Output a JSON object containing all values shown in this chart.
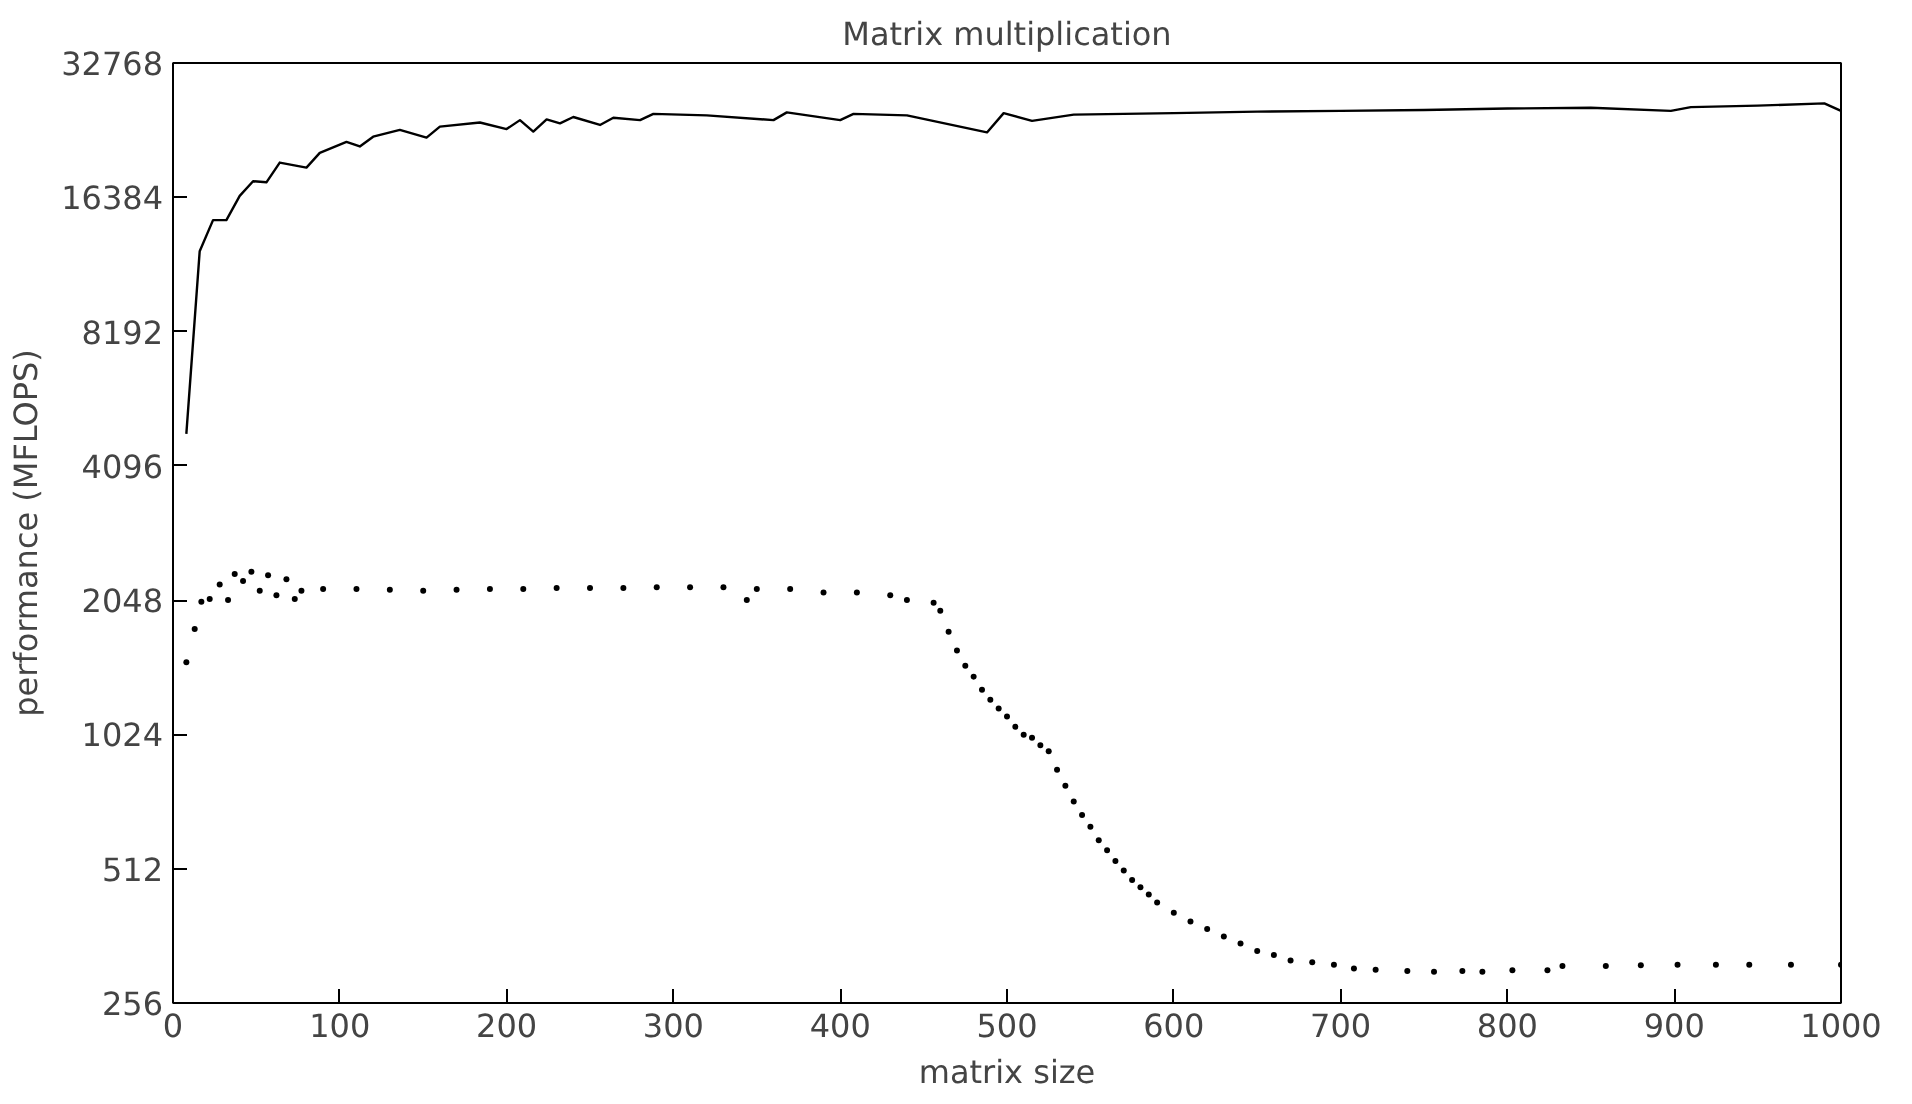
{
  "chart_data": {
    "type": "line",
    "title": "Matrix multiplication",
    "xlabel": "matrix size",
    "ylabel": "performance (MFLOPS)",
    "log": "y",
    "xlim": [
      0,
      1000
    ],
    "ylim": [
      256,
      32768
    ],
    "xticks": [
      0,
      100,
      200,
      300,
      400,
      500,
      600,
      700,
      800,
      900,
      1000
    ],
    "yticks": [
      256,
      512,
      1024,
      2048,
      4096,
      8192,
      16384,
      32768
    ],
    "grid": false,
    "series": [
      {
        "color": "#000000",
        "marker": "none",
        "line_style": "solid",
        "x": [
          8,
          16,
          24,
          32,
          40,
          48,
          56,
          64,
          80,
          88,
          104,
          112,
          120,
          136,
          152,
          160,
          184,
          200,
          208,
          216,
          224,
          232,
          240,
          256,
          264,
          280,
          288,
          320,
          360,
          368,
          400,
          408,
          440,
          488,
          498,
          515,
          540,
          600,
          650,
          700,
          750,
          800,
          850,
          898,
          910,
          950,
          990,
          1000
        ],
        "values": [
          4830,
          12400,
          14560,
          14560,
          16500,
          17800,
          17700,
          19600,
          19100,
          20600,
          21800,
          21300,
          22400,
          23200,
          22300,
          23600,
          24100,
          23300,
          24400,
          23000,
          24500,
          24000,
          24800,
          23800,
          24700,
          24400,
          25200,
          25000,
          24400,
          25400,
          24400,
          25200,
          25000,
          22900,
          25300,
          24300,
          25100,
          25300,
          25500,
          25600,
          25700,
          25900,
          26000,
          25600,
          26100,
          26300,
          26600,
          25600
        ]
      },
      {
        "type": "scatter",
        "color": "#000000",
        "marker": "circle",
        "x": [
          8,
          13,
          17,
          22,
          28,
          33,
          37,
          42,
          47,
          52,
          57,
          62,
          68,
          73,
          77,
          90,
          110,
          130,
          150,
          170,
          190,
          210,
          230,
          250,
          270,
          290,
          310,
          330,
          344,
          350,
          370,
          390,
          410,
          430,
          440,
          456,
          460,
          465,
          470,
          475,
          480,
          485,
          490,
          495,
          500,
          505,
          510,
          515,
          520,
          525,
          530,
          535,
          540,
          545,
          550,
          555,
          560,
          565,
          570,
          575,
          580,
          585,
          590,
          600,
          610,
          620,
          630,
          640,
          650,
          660,
          670,
          683,
          696,
          708,
          721,
          740,
          756,
          773,
          785,
          803,
          824,
          833,
          859,
          880,
          902,
          925,
          945,
          970,
          1000
        ],
        "values": [
          1486,
          1765,
          2030,
          2060,
          2220,
          2050,
          2345,
          2260,
          2370,
          2150,
          2330,
          2100,
          2280,
          2060,
          2150,
          2170,
          2170,
          2160,
          2150,
          2160,
          2170,
          2170,
          2180,
          2180,
          2180,
          2190,
          2190,
          2190,
          2050,
          2170,
          2170,
          2130,
          2130,
          2100,
          2050,
          2020,
          1940,
          1740,
          1580,
          1460,
          1380,
          1290,
          1225,
          1170,
          1124,
          1065,
          1022,
          1006,
          968,
          939,
          853,
          786,
          724,
          676,
          636,
          593,
          563,
          533,
          507,
          483,
          465,
          448,
          430,
          408,
          390,
          375,
          361,
          348,
          335,
          328,
          319,
          316,
          312,
          306,
          304,
          302,
          301,
          302,
          301,
          303,
          303,
          310,
          310,
          311,
          312,
          312,
          312,
          312,
          312
        ]
      }
    ]
  }
}
